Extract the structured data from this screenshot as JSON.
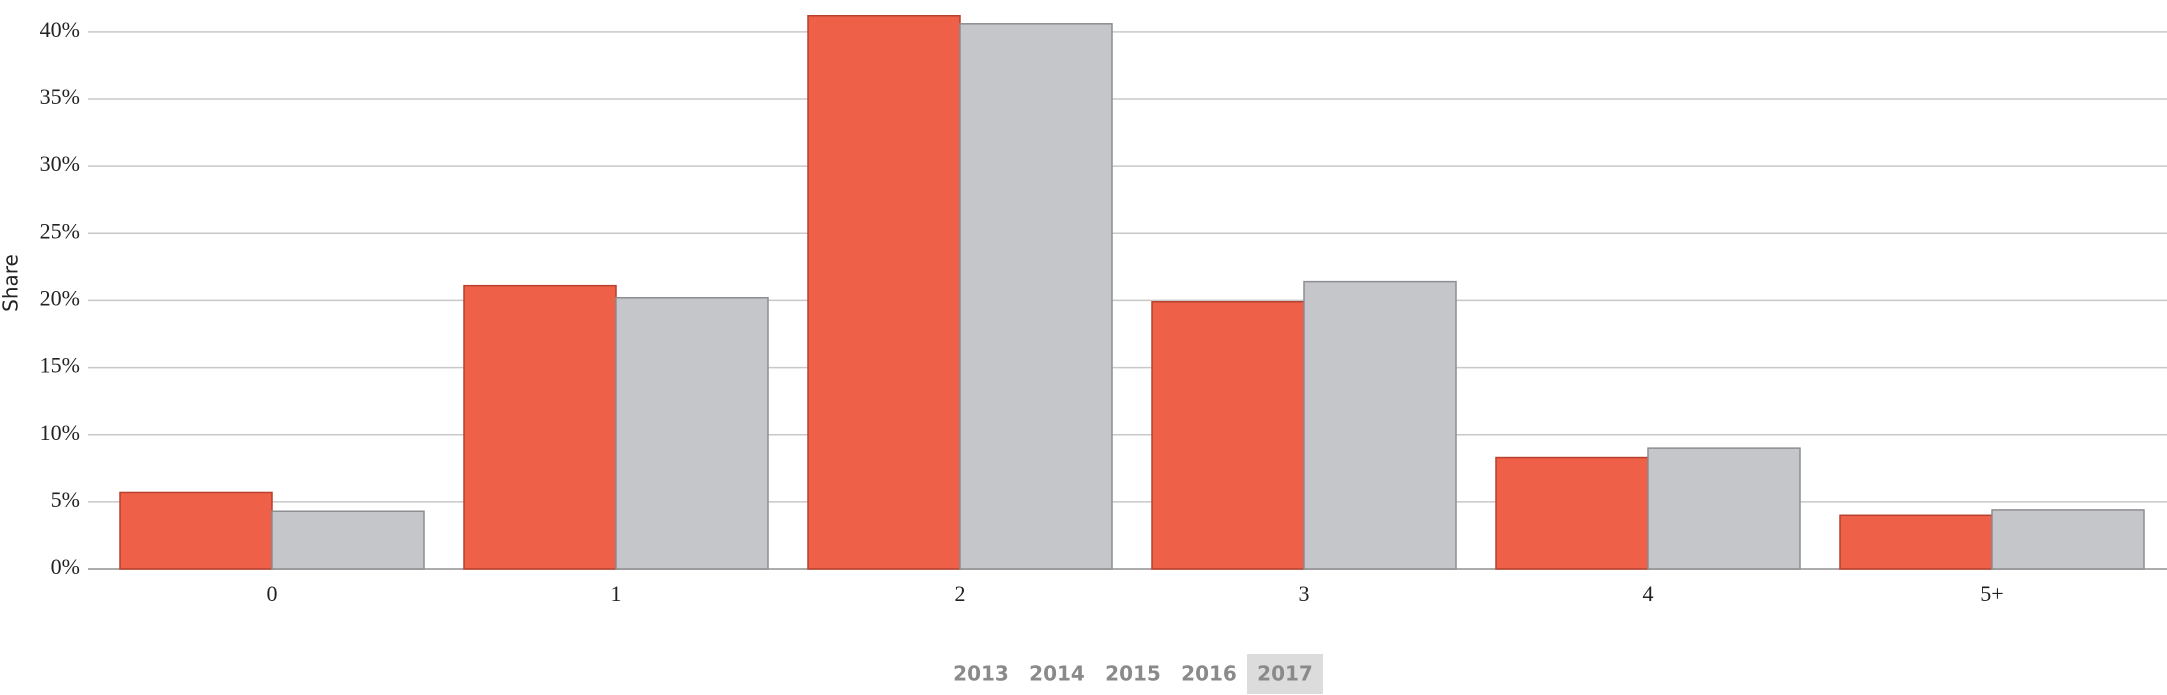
{
  "chart_data": {
    "type": "bar",
    "y_label": "Share",
    "categories": [
      "0",
      "1",
      "2",
      "3",
      "4",
      "5+"
    ],
    "series": [
      {
        "color": "#ee6148",
        "values": [
          5.7,
          21.1,
          41.2,
          19.9,
          8.3,
          4.0
        ]
      },
      {
        "color": "#c5c6ca",
        "values": [
          4.3,
          20.2,
          40.6,
          21.4,
          9.0,
          4.4
        ]
      }
    ],
    "ylim": [
      0,
      42
    ],
    "yticks": [
      {
        "value": 0,
        "label": "0%"
      },
      {
        "value": 5,
        "label": "5%"
      },
      {
        "value": 10,
        "label": "10%"
      },
      {
        "value": 15,
        "label": "15%"
      },
      {
        "value": 20,
        "label": "20%"
      },
      {
        "value": 25,
        "label": "25%"
      },
      {
        "value": 30,
        "label": "30%"
      },
      {
        "value": 35,
        "label": "35%"
      },
      {
        "value": 40,
        "label": "40%"
      }
    ],
    "grid": true
  },
  "controls": {
    "years": [
      "2013",
      "2014",
      "2015",
      "2016",
      "2017"
    ],
    "selected": "2017"
  }
}
